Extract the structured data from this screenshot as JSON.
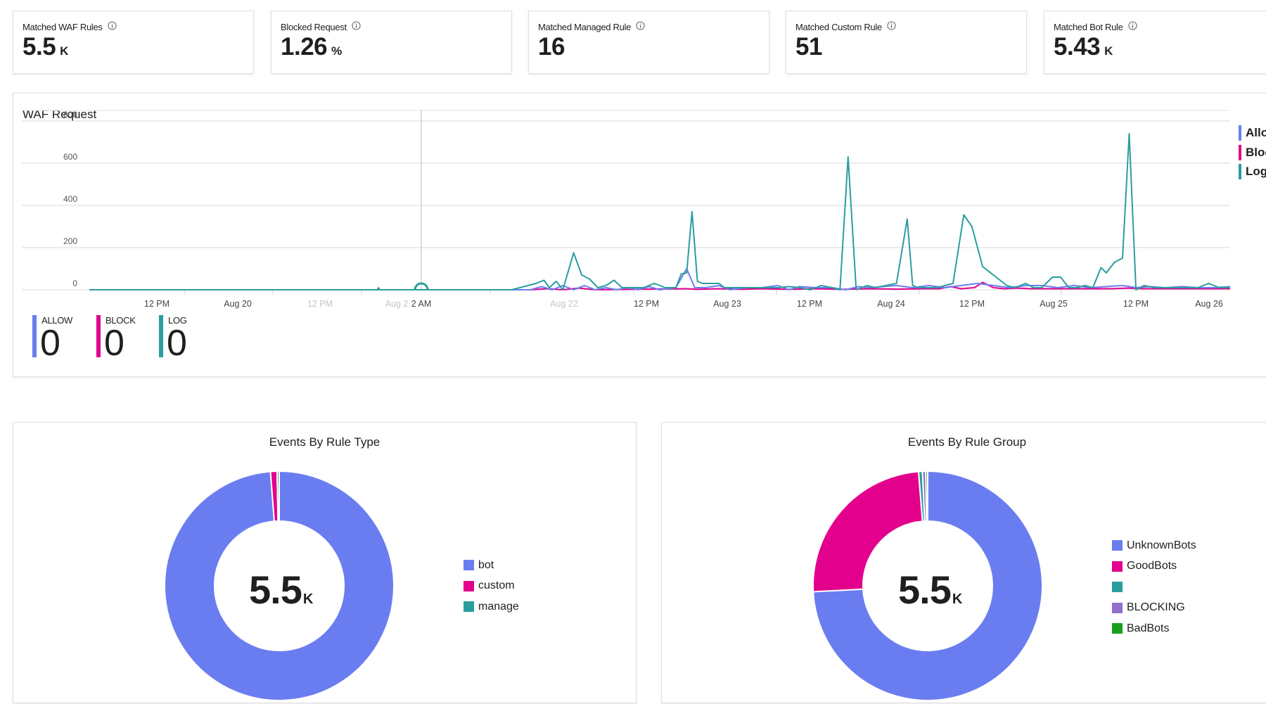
{
  "stats": [
    {
      "title": "Matched WAF Rules",
      "value": "5.5",
      "unit": "K"
    },
    {
      "title": "Blocked Request",
      "value": "1.26",
      "unit": "%"
    },
    {
      "title": "Matched Managed Rule",
      "value": "16",
      "unit": ""
    },
    {
      "title": "Matched Custom Rule",
      "value": "51",
      "unit": ""
    },
    {
      "title": "Matched Bot Rule",
      "value": "5.43",
      "unit": "K"
    }
  ],
  "waf_chart": {
    "title": "WAF Request",
    "legend": [
      {
        "label": "Allo",
        "color": "#6a7df0"
      },
      {
        "label": "Bloc",
        "color": "#e3008c"
      },
      {
        "label": "Log",
        "color": "#2a9d9f"
      }
    ],
    "summary": [
      {
        "label": "ALLOW",
        "value": "0",
        "color": "#6a7df0"
      },
      {
        "label": "BLOCK",
        "value": "0",
        "color": "#e3008c"
      },
      {
        "label": "LOG",
        "value": "0",
        "color": "#2a9d9f"
      }
    ]
  },
  "chart_data": {
    "type": "line",
    "title": "WAF Request",
    "xlabel": "",
    "ylabel": "",
    "ylim": [
      0,
      800
    ],
    "y_ticks": [
      "800",
      "600",
      "400",
      "200",
      "0"
    ],
    "x_ticks": [
      {
        "label": "12 PM",
        "dim": false
      },
      {
        "label": "Aug 20",
        "dim": false
      },
      {
        "label": "12 PM",
        "dim": true
      },
      {
        "label": "Aug 2",
        "dim": true
      },
      {
        "label": "2 AM",
        "dim": false
      },
      {
        "label": "Aug 22",
        "dim": true
      },
      {
        "label": "12 PM",
        "dim": false
      },
      {
        "label": "Aug 23",
        "dim": false
      },
      {
        "label": "12 PM",
        "dim": false
      },
      {
        "label": "Aug 24",
        "dim": false
      },
      {
        "label": "12 PM",
        "dim": false
      },
      {
        "label": "Aug 25",
        "dim": false
      },
      {
        "label": "12 PM",
        "dim": false
      },
      {
        "label": "Aug 26",
        "dim": false
      }
    ],
    "grid": true,
    "legend_position": "right",
    "series": [
      {
        "name": "Log",
        "color": "#2a9d9f",
        "points": [
          [
            0,
            0
          ],
          [
            10.2,
            0
          ],
          [
            10.7,
            0
          ],
          [
            10.75,
            10
          ],
          [
            10.8,
            0
          ],
          [
            11.2,
            0
          ],
          [
            15.3,
            0
          ],
          [
            15.7,
            0
          ],
          [
            16,
            10
          ],
          [
            16.3,
            20
          ],
          [
            16.6,
            30
          ],
          [
            16.9,
            45
          ],
          [
            17.1,
            10
          ],
          [
            17.35,
            40
          ],
          [
            17.6,
            0
          ],
          [
            18,
            175
          ],
          [
            18.3,
            70
          ],
          [
            18.6,
            50
          ],
          [
            18.9,
            10
          ],
          [
            19.2,
            20
          ],
          [
            19.5,
            45
          ],
          [
            19.8,
            10
          ],
          [
            20.2,
            10
          ],
          [
            20.6,
            10
          ],
          [
            21,
            30
          ],
          [
            21.4,
            10
          ],
          [
            21.8,
            10
          ],
          [
            22,
            75
          ],
          [
            22.2,
            80
          ],
          [
            22.4,
            370
          ],
          [
            22.6,
            40
          ],
          [
            22.8,
            30
          ],
          [
            23.1,
            30
          ],
          [
            23.4,
            30
          ],
          [
            23.6,
            10
          ],
          [
            23.9,
            10
          ],
          [
            24.4,
            10
          ],
          [
            24.8,
            10
          ],
          [
            25.2,
            10
          ],
          [
            25.6,
            10
          ],
          [
            26,
            15
          ],
          [
            26.4,
            10
          ],
          [
            26.8,
            0
          ],
          [
            27.2,
            20
          ],
          [
            27.6,
            10
          ],
          [
            27.9,
            0
          ],
          [
            28.2,
            630
          ],
          [
            28.5,
            0
          ],
          [
            28.9,
            20
          ],
          [
            29.2,
            10
          ],
          [
            29.6,
            20
          ],
          [
            30,
            30
          ],
          [
            30.4,
            335
          ],
          [
            30.6,
            20
          ],
          [
            30.8,
            10
          ],
          [
            31.1,
            10
          ],
          [
            31.5,
            10
          ],
          [
            31.8,
            20
          ],
          [
            32.1,
            30
          ],
          [
            32.5,
            355
          ],
          [
            32.8,
            300
          ],
          [
            33.2,
            110
          ],
          [
            33.5,
            80
          ],
          [
            33.8,
            50
          ],
          [
            34.1,
            20
          ],
          [
            34.4,
            10
          ],
          [
            34.8,
            30
          ],
          [
            35.1,
            10
          ],
          [
            35.4,
            10
          ],
          [
            35.8,
            60
          ],
          [
            36.1,
            60
          ],
          [
            36.4,
            10
          ],
          [
            36.7,
            10
          ],
          [
            37,
            20
          ],
          [
            37.3,
            10
          ],
          [
            37.6,
            105
          ],
          [
            37.8,
            80
          ],
          [
            38.1,
            130
          ],
          [
            38.4,
            150
          ],
          [
            38.65,
            740
          ],
          [
            38.9,
            0
          ],
          [
            39.2,
            20
          ],
          [
            39.6,
            10
          ],
          [
            40,
            10
          ],
          [
            40.4,
            10
          ],
          [
            40.8,
            10
          ],
          [
            41.2,
            10
          ],
          [
            41.6,
            30
          ],
          [
            42,
            10
          ],
          [
            42.4,
            10
          ]
        ]
      },
      {
        "name": "Allow",
        "color": "#6a7df0",
        "points": [
          [
            0,
            0
          ],
          [
            15.5,
            0
          ],
          [
            16.4,
            0
          ],
          [
            16.8,
            15
          ],
          [
            17.2,
            0
          ],
          [
            17.6,
            20
          ],
          [
            18,
            0
          ],
          [
            18.4,
            20
          ],
          [
            18.8,
            0
          ],
          [
            19.2,
            10
          ],
          [
            19.6,
            0
          ],
          [
            20,
            10
          ],
          [
            20.4,
            0
          ],
          [
            20.8,
            15
          ],
          [
            21.2,
            0
          ],
          [
            21.8,
            10
          ],
          [
            22.2,
            100
          ],
          [
            22.5,
            10
          ],
          [
            22.9,
            10
          ],
          [
            23.4,
            20
          ],
          [
            23.8,
            0
          ],
          [
            24.4,
            10
          ],
          [
            25,
            10
          ],
          [
            25.6,
            20
          ],
          [
            26,
            0
          ],
          [
            26.4,
            15
          ],
          [
            27,
            10
          ],
          [
            27.6,
            10
          ],
          [
            28.1,
            0
          ],
          [
            28.6,
            15
          ],
          [
            29,
            10
          ],
          [
            29.5,
            15
          ],
          [
            30,
            20
          ],
          [
            30.6,
            10
          ],
          [
            31.2,
            20
          ],
          [
            31.8,
            10
          ],
          [
            32.4,
            20
          ],
          [
            33,
            30
          ],
          [
            33.6,
            20
          ],
          [
            34.2,
            10
          ],
          [
            34.8,
            20
          ],
          [
            35.4,
            20
          ],
          [
            36,
            10
          ],
          [
            36.6,
            20
          ],
          [
            37.2,
            10
          ],
          [
            37.8,
            15
          ],
          [
            38.4,
            20
          ],
          [
            38.9,
            10
          ],
          [
            39.4,
            15
          ],
          [
            40,
            10
          ],
          [
            40.6,
            15
          ],
          [
            41.2,
            10
          ],
          [
            41.8,
            10
          ],
          [
            42.4,
            15
          ]
        ]
      },
      {
        "name": "Block",
        "color": "#e3008c",
        "points": [
          [
            0,
            0
          ],
          [
            16.4,
            0
          ],
          [
            17,
            5
          ],
          [
            17.6,
            0
          ],
          [
            18.2,
            8
          ],
          [
            18.8,
            0
          ],
          [
            22.2,
            5
          ],
          [
            22.6,
            2
          ],
          [
            23.4,
            5
          ],
          [
            24.2,
            2
          ],
          [
            25,
            5
          ],
          [
            26,
            2
          ],
          [
            27,
            5
          ],
          [
            28,
            2
          ],
          [
            29,
            5
          ],
          [
            30,
            3
          ],
          [
            31,
            5
          ],
          [
            31.6,
            5
          ],
          [
            32,
            15
          ],
          [
            32.4,
            5
          ],
          [
            32.9,
            10
          ],
          [
            33.2,
            35
          ],
          [
            33.6,
            10
          ],
          [
            34,
            5
          ],
          [
            34.5,
            8
          ],
          [
            35,
            5
          ],
          [
            36,
            5
          ],
          [
            37,
            5
          ],
          [
            38,
            5
          ],
          [
            38.6,
            8
          ],
          [
            39.2,
            5
          ],
          [
            40,
            5
          ],
          [
            41,
            5
          ],
          [
            42,
            5
          ],
          [
            42.4,
            5
          ]
        ]
      }
    ]
  },
  "rule_type_chart": {
    "title": "Events By Rule Type",
    "center_value": "5.5",
    "center_unit": "K",
    "legend": [
      {
        "label": "bot",
        "color": "#6a7df0"
      },
      {
        "label": "custom",
        "color": "#e3008c"
      },
      {
        "label": "manage",
        "color": "#2a9d9f"
      }
    ],
    "slices": [
      {
        "label": "bot",
        "value": 5433,
        "color": "#6a7df0"
      },
      {
        "label": "custom",
        "value": 51,
        "color": "#e3008c"
      },
      {
        "label": "manage",
        "value": 16,
        "color": "#2a9d9f"
      }
    ]
  },
  "rule_group_chart": {
    "title": "Events By Rule Group",
    "center_value": "5.5",
    "center_unit": "K",
    "legend": [
      {
        "label": "UnknownBots",
        "color": "#6a7df0"
      },
      {
        "label": "GoodBots",
        "color": "#e3008c"
      },
      {
        "label": "",
        "color": "#2a9d9f"
      },
      {
        "label": "BLOCKING",
        "color": "#8f6ec7"
      },
      {
        "label": "BadBots",
        "color": "#18a01d"
      }
    ],
    "slices": [
      {
        "label": "UnknownBots",
        "value": 4080,
        "color": "#6a7df0"
      },
      {
        "label": "GoodBots",
        "value": 1350,
        "color": "#e3008c"
      },
      {
        "label": "",
        "value": 30,
        "color": "#2a9d9f"
      },
      {
        "label": "BLOCKING",
        "value": 25,
        "color": "#8f6ec7"
      },
      {
        "label": "BadBots",
        "value": 15,
        "color": "#18a01d"
      }
    ]
  }
}
